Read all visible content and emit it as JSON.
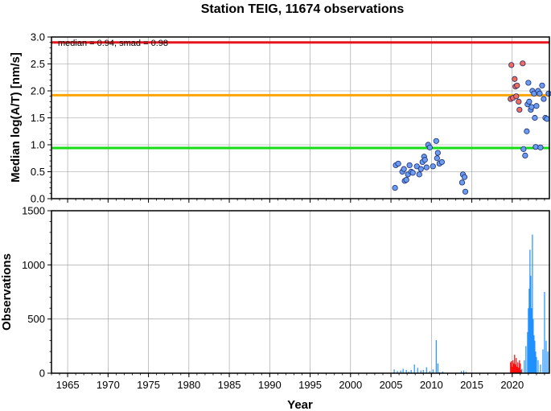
{
  "title": "Station TEIG, 11674 observations",
  "chart_data": [
    {
      "type": "scatter",
      "ylabel": "Median log(A/T) [nm/s]",
      "xlim": [
        1963.0,
        2024.6
      ],
      "ylim": [
        0.0,
        3.0
      ],
      "yticks": [
        "0.0",
        "0.5",
        "1.0",
        "1.5",
        "2.0",
        "2.5",
        "3.0"
      ],
      "grid": true,
      "annotation": "median = 0.94, smad = 0.98",
      "reference_lines": [
        {
          "value": 2.9,
          "color": "#e8141b"
        },
        {
          "value": 1.92,
          "color": "#ffa500"
        },
        {
          "value": 0.94,
          "color": "#16dc16"
        }
      ],
      "series": [
        {
          "color": "#6b9cf2",
          "points": [
            [
              2005.5,
              0.2
            ],
            [
              2005.6,
              0.62
            ],
            [
              2005.9,
              0.65
            ],
            [
              2006.4,
              0.5
            ],
            [
              2006.6,
              0.55
            ],
            [
              2006.7,
              0.33
            ],
            [
              2006.9,
              0.35
            ],
            [
              2007.1,
              0.45
            ],
            [
              2007.3,
              0.62
            ],
            [
              2007.5,
              0.5
            ],
            [
              2007.7,
              0.48
            ],
            [
              2008.2,
              0.6
            ],
            [
              2008.5,
              0.45
            ],
            [
              2008.7,
              0.55
            ],
            [
              2008.9,
              0.68
            ],
            [
              2009.1,
              0.78
            ],
            [
              2009.2,
              0.72
            ],
            [
              2009.4,
              0.58
            ],
            [
              2009.6,
              1.0
            ],
            [
              2009.8,
              0.95
            ],
            [
              2010.2,
              0.6
            ],
            [
              2010.6,
              1.07
            ],
            [
              2010.7,
              0.75
            ],
            [
              2010.8,
              0.85
            ],
            [
              2011.0,
              0.65
            ],
            [
              2011.3,
              0.68
            ],
            [
              2013.8,
              0.3
            ],
            [
              2013.9,
              0.45
            ],
            [
              2014.1,
              0.4
            ],
            [
              2014.2,
              0.13
            ],
            [
              2021.4,
              0.92
            ],
            [
              2021.6,
              0.8
            ],
            [
              2021.8,
              1.25
            ],
            [
              2021.9,
              1.75
            ],
            [
              2022.0,
              2.15
            ],
            [
              2022.1,
              1.8
            ],
            [
              2022.3,
              1.65
            ],
            [
              2022.4,
              1.7
            ],
            [
              2022.5,
              2.0
            ],
            [
              2022.7,
              1.95
            ],
            [
              2022.8,
              1.5
            ],
            [
              2022.9,
              0.96
            ],
            [
              2023.0,
              1.72
            ],
            [
              2023.2,
              2.0
            ],
            [
              2023.4,
              1.95
            ],
            [
              2023.5,
              0.95
            ],
            [
              2023.7,
              2.1
            ],
            [
              2023.9,
              1.85
            ],
            [
              2024.1,
              1.5
            ],
            [
              2024.3,
              1.48
            ],
            [
              2024.5,
              1.95
            ]
          ]
        },
        {
          "color": "#f26b5b",
          "points": [
            [
              2019.8,
              1.85
            ],
            [
              2019.9,
              2.48
            ],
            [
              2020.1,
              1.87
            ],
            [
              2020.3,
              2.22
            ],
            [
              2020.4,
              2.08
            ],
            [
              2020.5,
              1.9
            ],
            [
              2020.6,
              2.1
            ],
            [
              2020.8,
              1.8
            ],
            [
              2020.9,
              1.65
            ],
            [
              2021.3,
              2.51
            ]
          ]
        }
      ]
    },
    {
      "type": "bar",
      "xlabel": "Year",
      "ylabel": "Observations",
      "xlim": [
        1963.0,
        2024.6
      ],
      "ylim": [
        0,
        1500
      ],
      "xticks": [
        "1965",
        "1970",
        "1975",
        "1980",
        "1985",
        "1990",
        "1995",
        "2000",
        "2005",
        "2010",
        "2015",
        "2020"
      ],
      "yticks": [
        "0",
        "500",
        "1000",
        "1500"
      ],
      "grid": true,
      "series": [
        {
          "color": "#1e90ff",
          "x": [
            2005.4,
            2005.8,
            2006.2,
            2006.5,
            2006.9,
            2007.2,
            2007.5,
            2007.9,
            2008.3,
            2008.7,
            2009.0,
            2009.4,
            2009.8,
            2010.2,
            2010.6,
            2010.8,
            2011.0,
            2011.4,
            2013.7,
            2014.0,
            2014.3,
            2021.2,
            2021.5,
            2021.7,
            2021.9,
            2022.0,
            2022.1,
            2022.2,
            2022.3,
            2022.4,
            2022.5,
            2022.6,
            2022.7,
            2022.8,
            2022.9,
            2023.0,
            2023.2,
            2023.5,
            2023.8,
            2024.0,
            2024.2,
            2024.4
          ],
          "values": [
            35,
            20,
            25,
            40,
            30,
            15,
            30,
            80,
            50,
            25,
            30,
            55,
            20,
            35,
            305,
            90,
            10,
            15,
            20,
            25,
            12,
            40,
            120,
            250,
            380,
            600,
            780,
            1140,
            900,
            600,
            1280,
            500,
            350,
            300,
            200,
            150,
            120,
            80,
            220,
            750,
            300,
            200
          ]
        },
        {
          "color": "#ff0000",
          "x": [
            2019.8,
            2019.9,
            2020.0,
            2020.1,
            2020.2,
            2020.3,
            2020.4,
            2020.5,
            2020.6,
            2020.7,
            2020.8,
            2020.9,
            2021.0,
            2021.1
          ],
          "values": [
            100,
            110,
            60,
            120,
            90,
            170,
            80,
            140,
            60,
            100,
            50,
            120,
            90,
            30
          ]
        }
      ]
    }
  ]
}
